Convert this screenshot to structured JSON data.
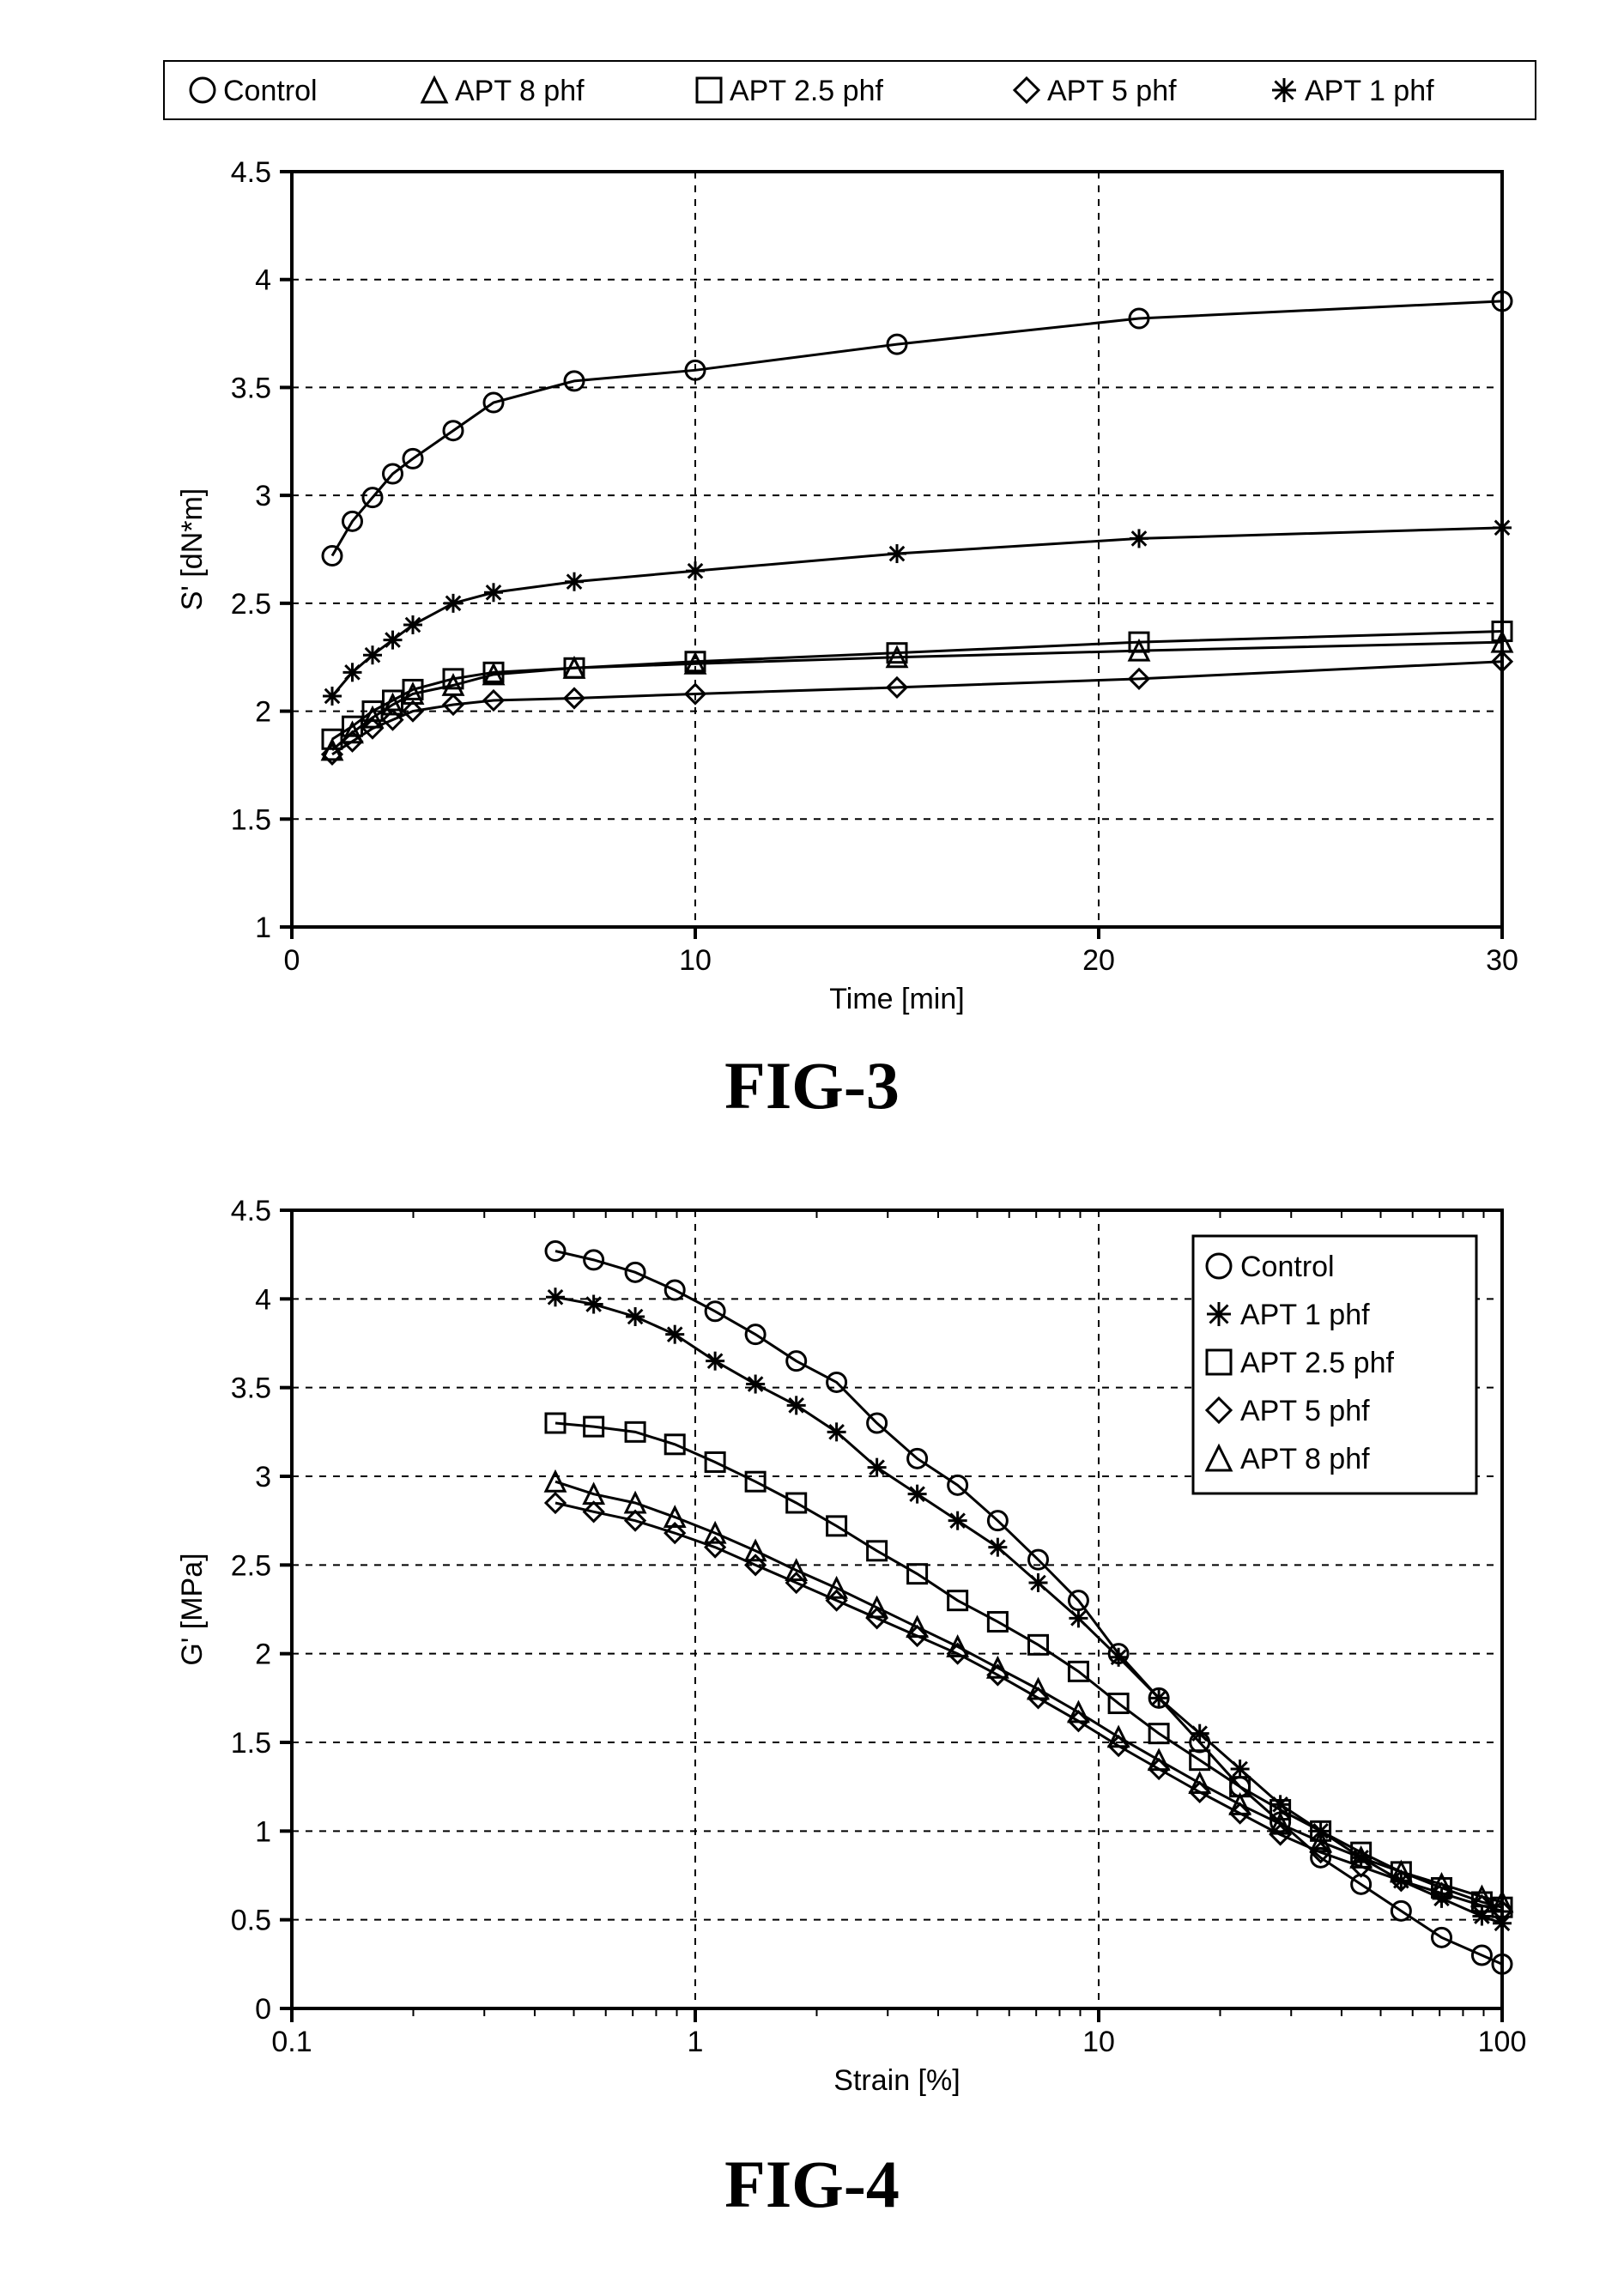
{
  "fig3": {
    "title": "FIG-3",
    "type": "line",
    "xlabel": "Time [min]",
    "ylabel": "S' [dN*m]",
    "xlim": [
      0,
      30
    ],
    "ylim": [
      1,
      4.5
    ],
    "xtick_step": 10,
    "ytick_step": 0.5,
    "label_fontsize": 34,
    "tick_fontsize": 34,
    "title_fontsize": 78,
    "background_color": "#ffffff",
    "line_color": "#000000",
    "axis_color": "#000000",
    "grid_color": "#000000",
    "grid_dash": "8,8",
    "marker_size": 11,
    "line_width": 3,
    "axis_width": 4,
    "legend": {
      "border_color": "#000000",
      "border_width": 3,
      "fontsize": 34,
      "items": [
        {
          "marker": "circle",
          "label": "Control"
        },
        {
          "marker": "triangle",
          "label": "APT 8 phf"
        },
        {
          "marker": "square",
          "label": "APT 2.5 phf"
        },
        {
          "marker": "diamond",
          "label": "APT 5 phf"
        },
        {
          "marker": "asterisk",
          "label": "APT 1 phf"
        }
      ]
    },
    "series": [
      {
        "name": "Control",
        "marker": "circle",
        "x": [
          1,
          1.5,
          2,
          2.5,
          3,
          4,
          5,
          7,
          10,
          15,
          21,
          30
        ],
        "y": [
          2.72,
          2.88,
          2.99,
          3.1,
          3.17,
          3.3,
          3.43,
          3.53,
          3.58,
          3.7,
          3.82,
          3.9
        ]
      },
      {
        "name": "APT 1 phf",
        "marker": "asterisk",
        "x": [
          1,
          1.5,
          2,
          2.5,
          3,
          4,
          5,
          7,
          10,
          15,
          21,
          30
        ],
        "y": [
          2.07,
          2.18,
          2.26,
          2.33,
          2.4,
          2.5,
          2.55,
          2.6,
          2.65,
          2.73,
          2.8,
          2.85
        ]
      },
      {
        "name": "APT 2.5 phf",
        "marker": "square",
        "x": [
          1,
          1.5,
          2,
          2.5,
          3,
          4,
          5,
          7,
          10,
          15,
          21,
          30
        ],
        "y": [
          1.87,
          1.93,
          2.0,
          2.05,
          2.1,
          2.15,
          2.18,
          2.2,
          2.23,
          2.27,
          2.32,
          2.37
        ]
      },
      {
        "name": "APT 8 phf",
        "marker": "triangle",
        "x": [
          1,
          1.5,
          2,
          2.5,
          3,
          4,
          5,
          7,
          10,
          15,
          21,
          30
        ],
        "y": [
          1.82,
          1.9,
          1.97,
          2.03,
          2.08,
          2.12,
          2.17,
          2.2,
          2.22,
          2.25,
          2.28,
          2.32
        ]
      },
      {
        "name": "APT 5 phf",
        "marker": "diamond",
        "x": [
          1,
          1.5,
          2,
          2.5,
          3,
          4,
          5,
          7,
          10,
          15,
          21,
          30
        ],
        "y": [
          1.8,
          1.86,
          1.92,
          1.96,
          2.0,
          2.03,
          2.05,
          2.06,
          2.08,
          2.11,
          2.15,
          2.23
        ]
      }
    ]
  },
  "fig4": {
    "title": "FIG-4",
    "type": "line",
    "xlabel": "Strain [%]",
    "ylabel": "G' [MPa]",
    "x_scale": "log",
    "xlim": [
      0.1,
      100
    ],
    "ylim": [
      0,
      4.5
    ],
    "xticks": [
      0.1,
      1,
      10,
      100
    ],
    "ytick_step": 0.5,
    "label_fontsize": 34,
    "tick_fontsize": 34,
    "title_fontsize": 78,
    "background_color": "#ffffff",
    "line_color": "#000000",
    "axis_color": "#000000",
    "grid_color": "#000000",
    "grid_dash": "8,8",
    "marker_size": 11,
    "line_width": 3,
    "axis_width": 4,
    "legend": {
      "border_color": "#000000",
      "border_width": 3,
      "fontsize": 34,
      "position": "upper-right-inside",
      "items": [
        {
          "marker": "circle",
          "label": "Control"
        },
        {
          "marker": "asterisk",
          "label": "APT 1 phf"
        },
        {
          "marker": "square",
          "label": "APT 2.5 phf"
        },
        {
          "marker": "diamond",
          "label": "APT 5 phf"
        },
        {
          "marker": "triangle",
          "label": "APT 8 phf"
        }
      ]
    },
    "series": [
      {
        "name": "Control",
        "marker": "circle",
        "x": [
          0.45,
          0.56,
          0.71,
          0.89,
          1.12,
          1.41,
          1.78,
          2.24,
          2.82,
          3.55,
          4.47,
          5.62,
          7.08,
          8.91,
          11.2,
          14.1,
          17.8,
          22.4,
          28.2,
          35.5,
          44.7,
          56.2,
          70.8,
          89.1,
          100
        ],
        "y": [
          4.27,
          4.22,
          4.15,
          4.05,
          3.93,
          3.8,
          3.65,
          3.53,
          3.3,
          3.1,
          2.95,
          2.75,
          2.53,
          2.3,
          2.0,
          1.75,
          1.5,
          1.25,
          1.05,
          0.85,
          0.7,
          0.55,
          0.4,
          0.3,
          0.25
        ]
      },
      {
        "name": "APT 1 phf",
        "marker": "asterisk",
        "x": [
          0.45,
          0.56,
          0.71,
          0.89,
          1.12,
          1.41,
          1.78,
          2.24,
          2.82,
          3.55,
          4.47,
          5.62,
          7.08,
          8.91,
          11.2,
          14.1,
          17.8,
          22.4,
          28.2,
          35.5,
          44.7,
          56.2,
          70.8,
          89.1,
          100
        ],
        "y": [
          4.01,
          3.97,
          3.9,
          3.8,
          3.65,
          3.52,
          3.4,
          3.25,
          3.05,
          2.9,
          2.75,
          2.6,
          2.4,
          2.2,
          1.98,
          1.75,
          1.55,
          1.35,
          1.15,
          1.0,
          0.85,
          0.72,
          0.62,
          0.52,
          0.48
        ]
      },
      {
        "name": "APT 2.5 phf",
        "marker": "square",
        "x": [
          0.45,
          0.56,
          0.71,
          0.89,
          1.12,
          1.41,
          1.78,
          2.24,
          2.82,
          3.55,
          4.47,
          5.62,
          7.08,
          8.91,
          11.2,
          14.1,
          17.8,
          22.4,
          28.2,
          35.5,
          44.7,
          56.2,
          70.8,
          89.1,
          100
        ],
        "y": [
          3.3,
          3.28,
          3.25,
          3.18,
          3.08,
          2.97,
          2.85,
          2.72,
          2.58,
          2.45,
          2.3,
          2.18,
          2.05,
          1.9,
          1.72,
          1.55,
          1.4,
          1.25,
          1.12,
          1.0,
          0.88,
          0.77,
          0.68,
          0.6,
          0.57
        ]
      },
      {
        "name": "APT 5 phf",
        "marker": "diamond",
        "x": [
          0.45,
          0.56,
          0.71,
          0.89,
          1.12,
          1.41,
          1.78,
          2.24,
          2.82,
          3.55,
          4.47,
          5.62,
          7.08,
          8.91,
          11.2,
          14.1,
          17.8,
          22.4,
          28.2,
          35.5,
          44.7,
          56.2,
          70.8,
          89.1,
          100
        ],
        "y": [
          2.85,
          2.8,
          2.75,
          2.68,
          2.6,
          2.5,
          2.4,
          2.3,
          2.2,
          2.1,
          2.0,
          1.88,
          1.75,
          1.62,
          1.48,
          1.35,
          1.22,
          1.1,
          0.98,
          0.88,
          0.8,
          0.72,
          0.65,
          0.58,
          0.55
        ]
      },
      {
        "name": "APT 8 phf",
        "marker": "triangle",
        "x": [
          0.45,
          0.56,
          0.71,
          0.89,
          1.12,
          1.41,
          1.78,
          2.24,
          2.82,
          3.55,
          4.47,
          5.62,
          7.08,
          8.91,
          11.2,
          14.1,
          17.8,
          22.4,
          28.2,
          35.5,
          44.7,
          56.2,
          70.8,
          89.1,
          100
        ],
        "y": [
          2.97,
          2.9,
          2.85,
          2.77,
          2.68,
          2.58,
          2.47,
          2.37,
          2.26,
          2.15,
          2.04,
          1.92,
          1.8,
          1.67,
          1.53,
          1.4,
          1.27,
          1.15,
          1.04,
          0.94,
          0.85,
          0.77,
          0.7,
          0.63,
          0.6
        ]
      }
    ]
  }
}
